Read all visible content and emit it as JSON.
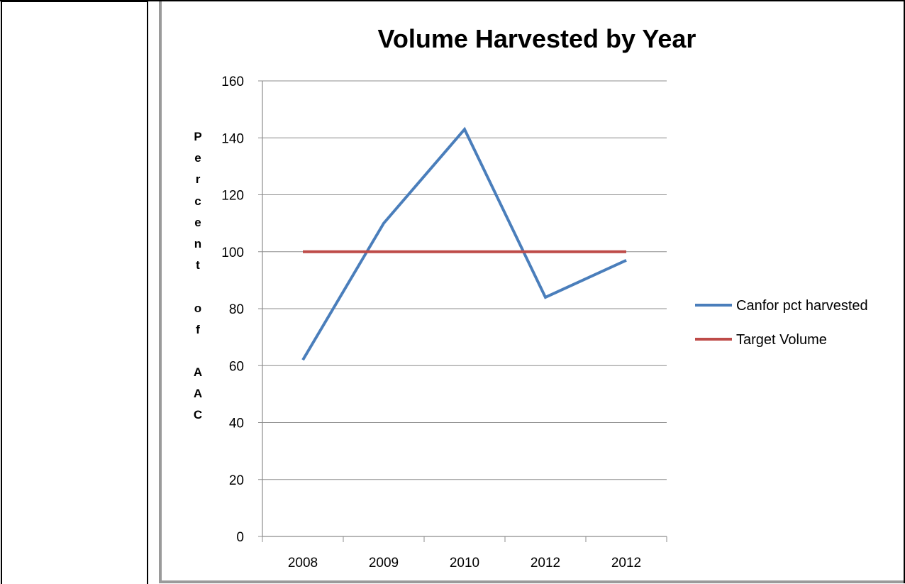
{
  "chart_data": {
    "type": "line",
    "title": "Volume Harvested by Year",
    "xlabel": "",
    "ylabel": "Percent of AAC",
    "categories": [
      "2008",
      "2009",
      "2010",
      "2012",
      "2012"
    ],
    "ylim": [
      0,
      160
    ],
    "yticks": [
      0,
      20,
      40,
      60,
      80,
      100,
      120,
      140,
      160
    ],
    "grid": true,
    "legend": "right",
    "series": [
      {
        "name": "Canfor pct harvested",
        "color": "#4a7ebb",
        "values": [
          62,
          110,
          143,
          84,
          97
        ]
      },
      {
        "name": "Target Volume",
        "color": "#be4b48",
        "values": [
          100,
          100,
          100,
          100,
          100
        ]
      }
    ]
  }
}
